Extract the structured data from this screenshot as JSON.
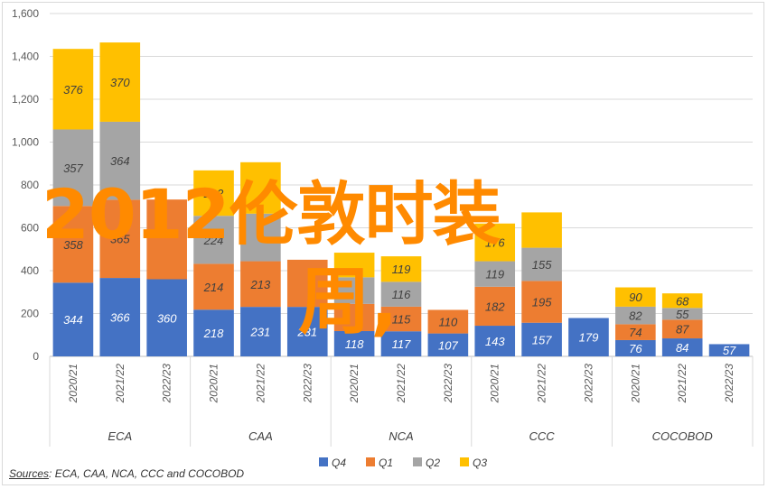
{
  "chart_data": {
    "type": "bar",
    "stacked": true,
    "groups": [
      {
        "name": "ECA",
        "categories": [
          "2020/21",
          "2021/22",
          "2022/23"
        ]
      },
      {
        "name": "CAA",
        "categories": [
          "2020/21",
          "2021/22",
          "2022/23"
        ]
      },
      {
        "name": "NCA",
        "categories": [
          "2020/21",
          "2021/22",
          "2022/23"
        ]
      },
      {
        "name": "CCC",
        "categories": [
          "2020/21",
          "2021/22",
          "2022/23"
        ]
      },
      {
        "name": "COCOBOD",
        "categories": [
          "2020/21",
          "2021/22",
          "2022/23"
        ]
      }
    ],
    "series": [
      {
        "name": "Q4",
        "color": "#4472c4",
        "values": [
          344,
          366,
          360,
          218,
          231,
          231,
          118,
          117,
          107,
          143,
          157,
          179,
          76,
          84,
          57
        ]
      },
      {
        "name": "Q1",
        "color": "#ed7d31",
        "values": [
          358,
          365,
          372,
          214,
          213,
          220,
          127,
          115,
          110,
          182,
          195,
          0,
          74,
          87,
          0
        ]
      },
      {
        "name": "Q2",
        "color": "#a5a5a5",
        "values": [
          357,
          364,
          0,
          224,
          222,
          0,
          124,
          116,
          0,
          119,
          155,
          0,
          82,
          55,
          0
        ]
      },
      {
        "name": "Q3",
        "color": "#ffc000",
        "values": [
          376,
          370,
          0,
          212,
          240,
          0,
          115,
          119,
          0,
          176,
          165,
          0,
          90,
          68,
          0
        ]
      }
    ],
    "value_labels": [
      [
        "344",
        "366",
        "360",
        "218",
        "231",
        "231",
        "118",
        "117",
        "107",
        "143",
        "157",
        "179",
        "76",
        "84",
        "57"
      ],
      [
        "358",
        "365",
        "",
        "214",
        "213",
        "",
        "",
        "115",
        "110",
        "182",
        "195",
        "",
        "74",
        "87",
        ""
      ],
      [
        "357",
        "364",
        "",
        "224",
        "",
        "",
        "",
        "116",
        "",
        "119",
        "155",
        "",
        "82",
        "55",
        ""
      ],
      [
        "376",
        "370",
        "",
        "212",
        "",
        "",
        "",
        "119",
        "",
        "176",
        "",
        "",
        "90",
        "68",
        ""
      ]
    ],
    "y_ticks": [
      "0",
      "200",
      "400",
      "600",
      "800",
      "1,000",
      "1,200",
      "1,400",
      "1,600"
    ],
    "ylim": [
      0,
      1600
    ],
    "grid": true,
    "legend_position": "bottom",
    "source_label": "Sources",
    "source_text": ": ECA, CAA, NCA, CCC and COCOBOD"
  },
  "overlay": {
    "line1": "2012伦敦时装",
    "line2": "周,"
  }
}
